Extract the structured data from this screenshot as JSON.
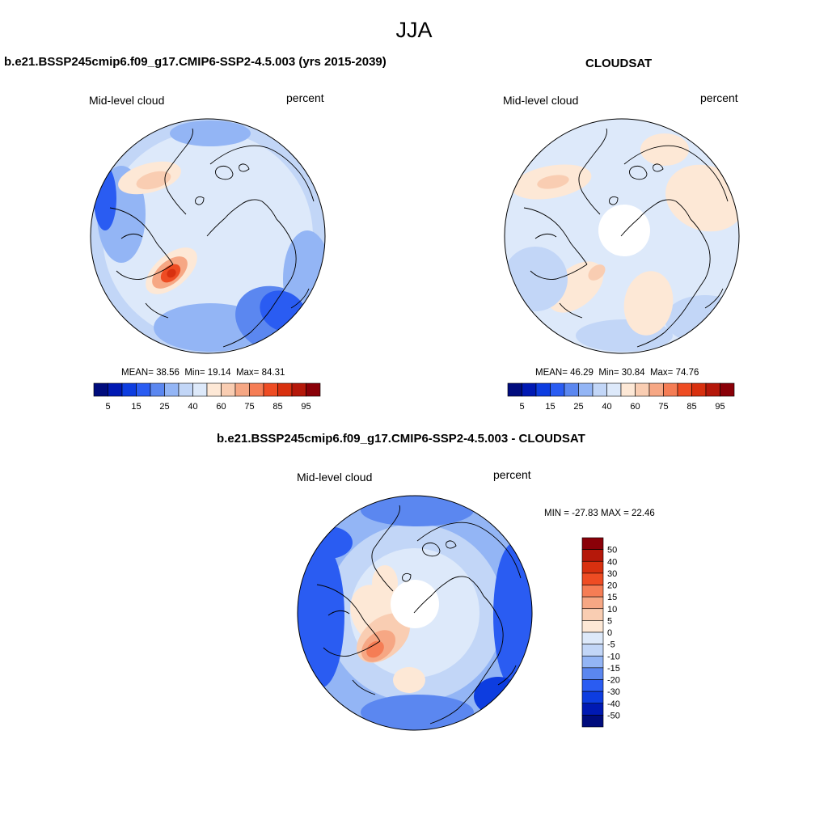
{
  "title": "JJA",
  "palettes": {
    "abs": [
      "#000c7d",
      "#0019b3",
      "#0d3de0",
      "#2a5cf2",
      "#5b87f0",
      "#93b5f5",
      "#c2d6f7",
      "#dde9fa",
      "#fde8d6",
      "#f9cdb2",
      "#f6a784",
      "#f57d55",
      "#ee4c23",
      "#d8300f",
      "#b5180a",
      "#8a0008"
    ],
    "diff": [
      "#000c7d",
      "#0019b3",
      "#0d3de0",
      "#2a5cf2",
      "#5b87f0",
      "#93b5f5",
      "#c2d6f7",
      "#dde9fa",
      "#fde8d6",
      "#f9cdb2",
      "#f6a784",
      "#f57d55",
      "#ee4c23",
      "#d8300f",
      "#b5180a",
      "#8a0008"
    ]
  },
  "panels": [
    {
      "title": "b.e21.BSSP245cmip6.f09_g17.CMIP6-SSP2-4.5.003 (yrs 2015-2039)",
      "left_label": "Mid-level cloud",
      "right_label": "percent",
      "stats": {
        "mean": "38.56",
        "min": "19.14",
        "max": "84.31"
      },
      "stat_labels": {
        "mean": "MEAN=",
        "min": "Min=",
        "max": "Max="
      },
      "colorbar_ticks": [
        "5",
        "15",
        "25",
        "40",
        "60",
        "75",
        "85",
        "95"
      ]
    },
    {
      "title": "CLOUDSAT",
      "left_label": "Mid-level cloud",
      "right_label": "percent",
      "stats": {
        "mean": "46.29",
        "min": "30.84",
        "max": "74.76"
      },
      "stat_labels": {
        "mean": "MEAN=",
        "min": "Min=",
        "max": "Max="
      },
      "colorbar_ticks": [
        "5",
        "15",
        "25",
        "40",
        "60",
        "75",
        "85",
        "95"
      ]
    },
    {
      "title": "b.e21.BSSP245cmip6.f09_g17.CMIP6-SSP2-4.5.003 - CLOUDSAT",
      "left_label": "Mid-level cloud",
      "right_label": "percent",
      "minmax": "MIN = -27.83 MAX =  22.46",
      "colorbar_ticks": [
        "50",
        "40",
        "30",
        "20",
        "15",
        "10",
        "5",
        "0",
        "-5",
        "-10",
        "-15",
        "-20",
        "-30",
        "-40",
        "-50"
      ]
    }
  ]
}
